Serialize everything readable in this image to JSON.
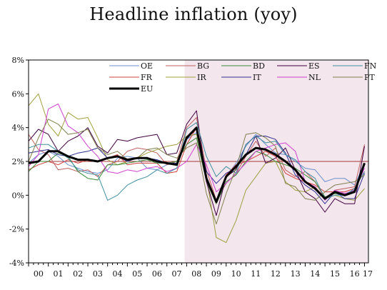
{
  "title": "Headline inflation (yoy)",
  "chart_data": {
    "type": "line",
    "title": "Headline inflation (yoy)",
    "xlabel": "",
    "ylabel": "",
    "x_ticks": [
      "00",
      "01",
      "02",
      "03",
      "04",
      "05",
      "06",
      "07",
      "08",
      "09",
      "10",
      "11",
      "12",
      "13",
      "14",
      "15",
      "16",
      "17"
    ],
    "y_ticks": [
      "8%",
      "6%",
      "4%",
      "2%",
      "0%",
      "-2%",
      "-4%"
    ],
    "y_tick_values": [
      8,
      6,
      4,
      2,
      0,
      -2,
      -4
    ],
    "ylim": [
      -4,
      8
    ],
    "xlim": [
      2000.0,
      2017.2
    ],
    "grid": false,
    "legend_position": "top",
    "shaded_region": {
      "from": 2007.9,
      "to": 2017.2,
      "color": "#f3e6ec"
    },
    "reference_line": {
      "y": 2,
      "color": "#a03838"
    },
    "x_sample_years": [
      2000.0,
      2000.5,
      2001.0,
      2001.5,
      2002.0,
      2002.5,
      2003.0,
      2003.5,
      2004.0,
      2004.5,
      2005.0,
      2005.5,
      2006.0,
      2006.5,
      2007.0,
      2007.5,
      2008.0,
      2008.5,
      2009.0,
      2009.5,
      2010.0,
      2010.5,
      2011.0,
      2011.5,
      2012.0,
      2012.5,
      2013.0,
      2013.5,
      2014.0,
      2014.5,
      2015.0,
      2015.5,
      2016.0,
      2016.5,
      2017.0
    ],
    "series": [
      {
        "name": "OE",
        "color": "#6a8fd0",
        "width": 1,
        "values": [
          1.9,
          2.4,
          2.6,
          2.3,
          1.8,
          1.6,
          1.4,
          1.3,
          1.5,
          2.2,
          2.3,
          2.2,
          1.6,
          1.5,
          1.8,
          1.9,
          3.3,
          3.7,
          0.9,
          -0.3,
          1.1,
          1.9,
          2.9,
          3.6,
          3.0,
          2.5,
          2.4,
          2.0,
          1.6,
          1.5,
          0.8,
          1.0,
          1.0,
          0.6,
          1.9
        ]
      },
      {
        "name": "FR",
        "color": "#d04040",
        "width": 1,
        "values": [
          1.5,
          1.8,
          2.0,
          1.8,
          2.1,
          1.9,
          2.1,
          2.0,
          2.2,
          2.4,
          1.8,
          1.9,
          1.9,
          1.9,
          1.3,
          1.4,
          3.0,
          4.0,
          1.0,
          -0.5,
          1.2,
          1.8,
          2.0,
          2.3,
          2.6,
          2.3,
          1.3,
          1.0,
          0.8,
          0.6,
          0.2,
          0.2,
          0.2,
          0.4,
          1.4
        ]
      },
      {
        "name": "EU",
        "color": "#000000",
        "width": 3,
        "values": [
          1.9,
          2.0,
          2.6,
          2.6,
          2.3,
          2.1,
          2.1,
          2.0,
          2.2,
          2.3,
          2.1,
          2.2,
          2.2,
          2.0,
          1.9,
          1.8,
          3.4,
          4.0,
          1.0,
          -0.4,
          1.1,
          1.7,
          2.4,
          2.8,
          2.7,
          2.4,
          2.0,
          1.5,
          0.8,
          0.4,
          -0.2,
          0.2,
          0.0,
          0.2,
          1.9
        ]
      },
      {
        "name": "BG",
        "color": "#c06060",
        "width": 1,
        "values": [
          3.6,
          2.7,
          2.4,
          1.5,
          1.6,
          1.4,
          1.5,
          1.1,
          1.8,
          2.0,
          2.6,
          2.8,
          2.7,
          2.5,
          1.8,
          2.0,
          4.0,
          4.6,
          1.5,
          -0.3,
          0.7,
          1.3,
          2.3,
          3.2,
          2.3,
          2.8,
          1.5,
          1.1,
          1.4,
          0.8,
          -0.2,
          0.3,
          0.4,
          0.5,
          3.0
        ]
      },
      {
        "name": "IR",
        "color": "#a0a040",
        "width": 1,
        "values": [
          5.3,
          6.0,
          4.2,
          3.5,
          4.9,
          4.5,
          4.6,
          3.4,
          2.1,
          1.8,
          2.0,
          2.2,
          2.5,
          2.7,
          2.9,
          3.0,
          3.5,
          3.6,
          1.1,
          -2.5,
          -2.8,
          -1.5,
          0.3,
          1.1,
          1.9,
          2.0,
          0.8,
          0.3,
          0.2,
          0.5,
          -0.2,
          0.0,
          -0.2,
          -0.3,
          0.4
        ]
      },
      {
        "name": "BD",
        "color": "#3a8a3a",
        "width": 1,
        "values": [
          1.4,
          2.0,
          2.0,
          2.5,
          2.3,
          1.4,
          1.0,
          0.9,
          1.8,
          1.8,
          1.9,
          2.0,
          2.1,
          1.9,
          1.9,
          2.0,
          3.0,
          3.4,
          0.8,
          -0.5,
          0.8,
          1.2,
          2.0,
          2.6,
          2.4,
          2.0,
          1.8,
          1.6,
          1.2,
          0.8,
          -0.1,
          0.1,
          0.0,
          0.3,
          1.9
        ]
      },
      {
        "name": "IT",
        "color": "#303090",
        "width": 1,
        "values": [
          2.5,
          2.6,
          2.7,
          2.4,
          2.3,
          2.5,
          2.6,
          2.8,
          2.2,
          2.3,
          2.0,
          2.2,
          2.2,
          2.1,
          1.9,
          1.9,
          3.3,
          4.0,
          1.4,
          0.7,
          1.3,
          1.6,
          2.4,
          3.5,
          3.5,
          3.3,
          2.5,
          1.2,
          0.6,
          0.2,
          -0.5,
          0.2,
          -0.2,
          -0.2,
          1.3
        ]
      },
      {
        "name": "ES",
        "color": "#400040",
        "width": 1,
        "values": [
          3.2,
          3.9,
          3.6,
          2.6,
          3.2,
          3.5,
          4.0,
          2.9,
          2.5,
          3.3,
          3.2,
          3.4,
          3.5,
          3.6,
          2.4,
          2.5,
          4.2,
          5.0,
          0.8,
          -1.2,
          1.1,
          1.5,
          3.0,
          3.5,
          1.9,
          2.2,
          2.8,
          1.5,
          0.2,
          -0.2,
          -1.0,
          -0.2,
          -0.5,
          -0.5,
          2.9
        ]
      },
      {
        "name": "NL",
        "color": "#d040d0",
        "width": 1,
        "values": [
          1.7,
          2.4,
          5.1,
          5.4,
          4.1,
          3.7,
          2.9,
          2.3,
          1.4,
          1.3,
          1.5,
          1.4,
          1.6,
          1.7,
          1.4,
          1.6,
          2.0,
          3.0,
          1.8,
          0.2,
          0.7,
          1.3,
          1.9,
          2.6,
          2.8,
          3.0,
          3.1,
          2.6,
          0.8,
          0.5,
          -0.3,
          0.3,
          0.1,
          0.3,
          1.6
        ]
      },
      {
        "name": "FN",
        "color": "#4090a0",
        "width": 1,
        "values": [
          2.8,
          3.0,
          3.0,
          2.6,
          2.2,
          1.5,
          1.3,
          1.2,
          -0.3,
          0.0,
          0.6,
          0.9,
          1.1,
          1.5,
          1.3,
          1.6,
          3.9,
          4.3,
          2.3,
          1.1,
          1.7,
          1.3,
          3.0,
          3.5,
          3.1,
          3.2,
          2.4,
          2.1,
          1.4,
          1.0,
          -0.2,
          0.0,
          0.0,
          0.4,
          1.4
        ]
      },
      {
        "name": "PT",
        "color": "#808050",
        "width": 1,
        "values": [
          2.0,
          3.4,
          4.5,
          4.2,
          3.6,
          3.7,
          3.9,
          2.8,
          2.4,
          2.6,
          2.1,
          2.2,
          2.7,
          2.8,
          2.4,
          2.2,
          2.8,
          3.1,
          0.1,
          -1.7,
          0.1,
          1.6,
          3.6,
          3.7,
          3.4,
          2.9,
          0.7,
          0.5,
          -0.2,
          -0.3,
          0.2,
          0.6,
          0.7,
          0.8,
          1.2
        ]
      }
    ]
  }
}
